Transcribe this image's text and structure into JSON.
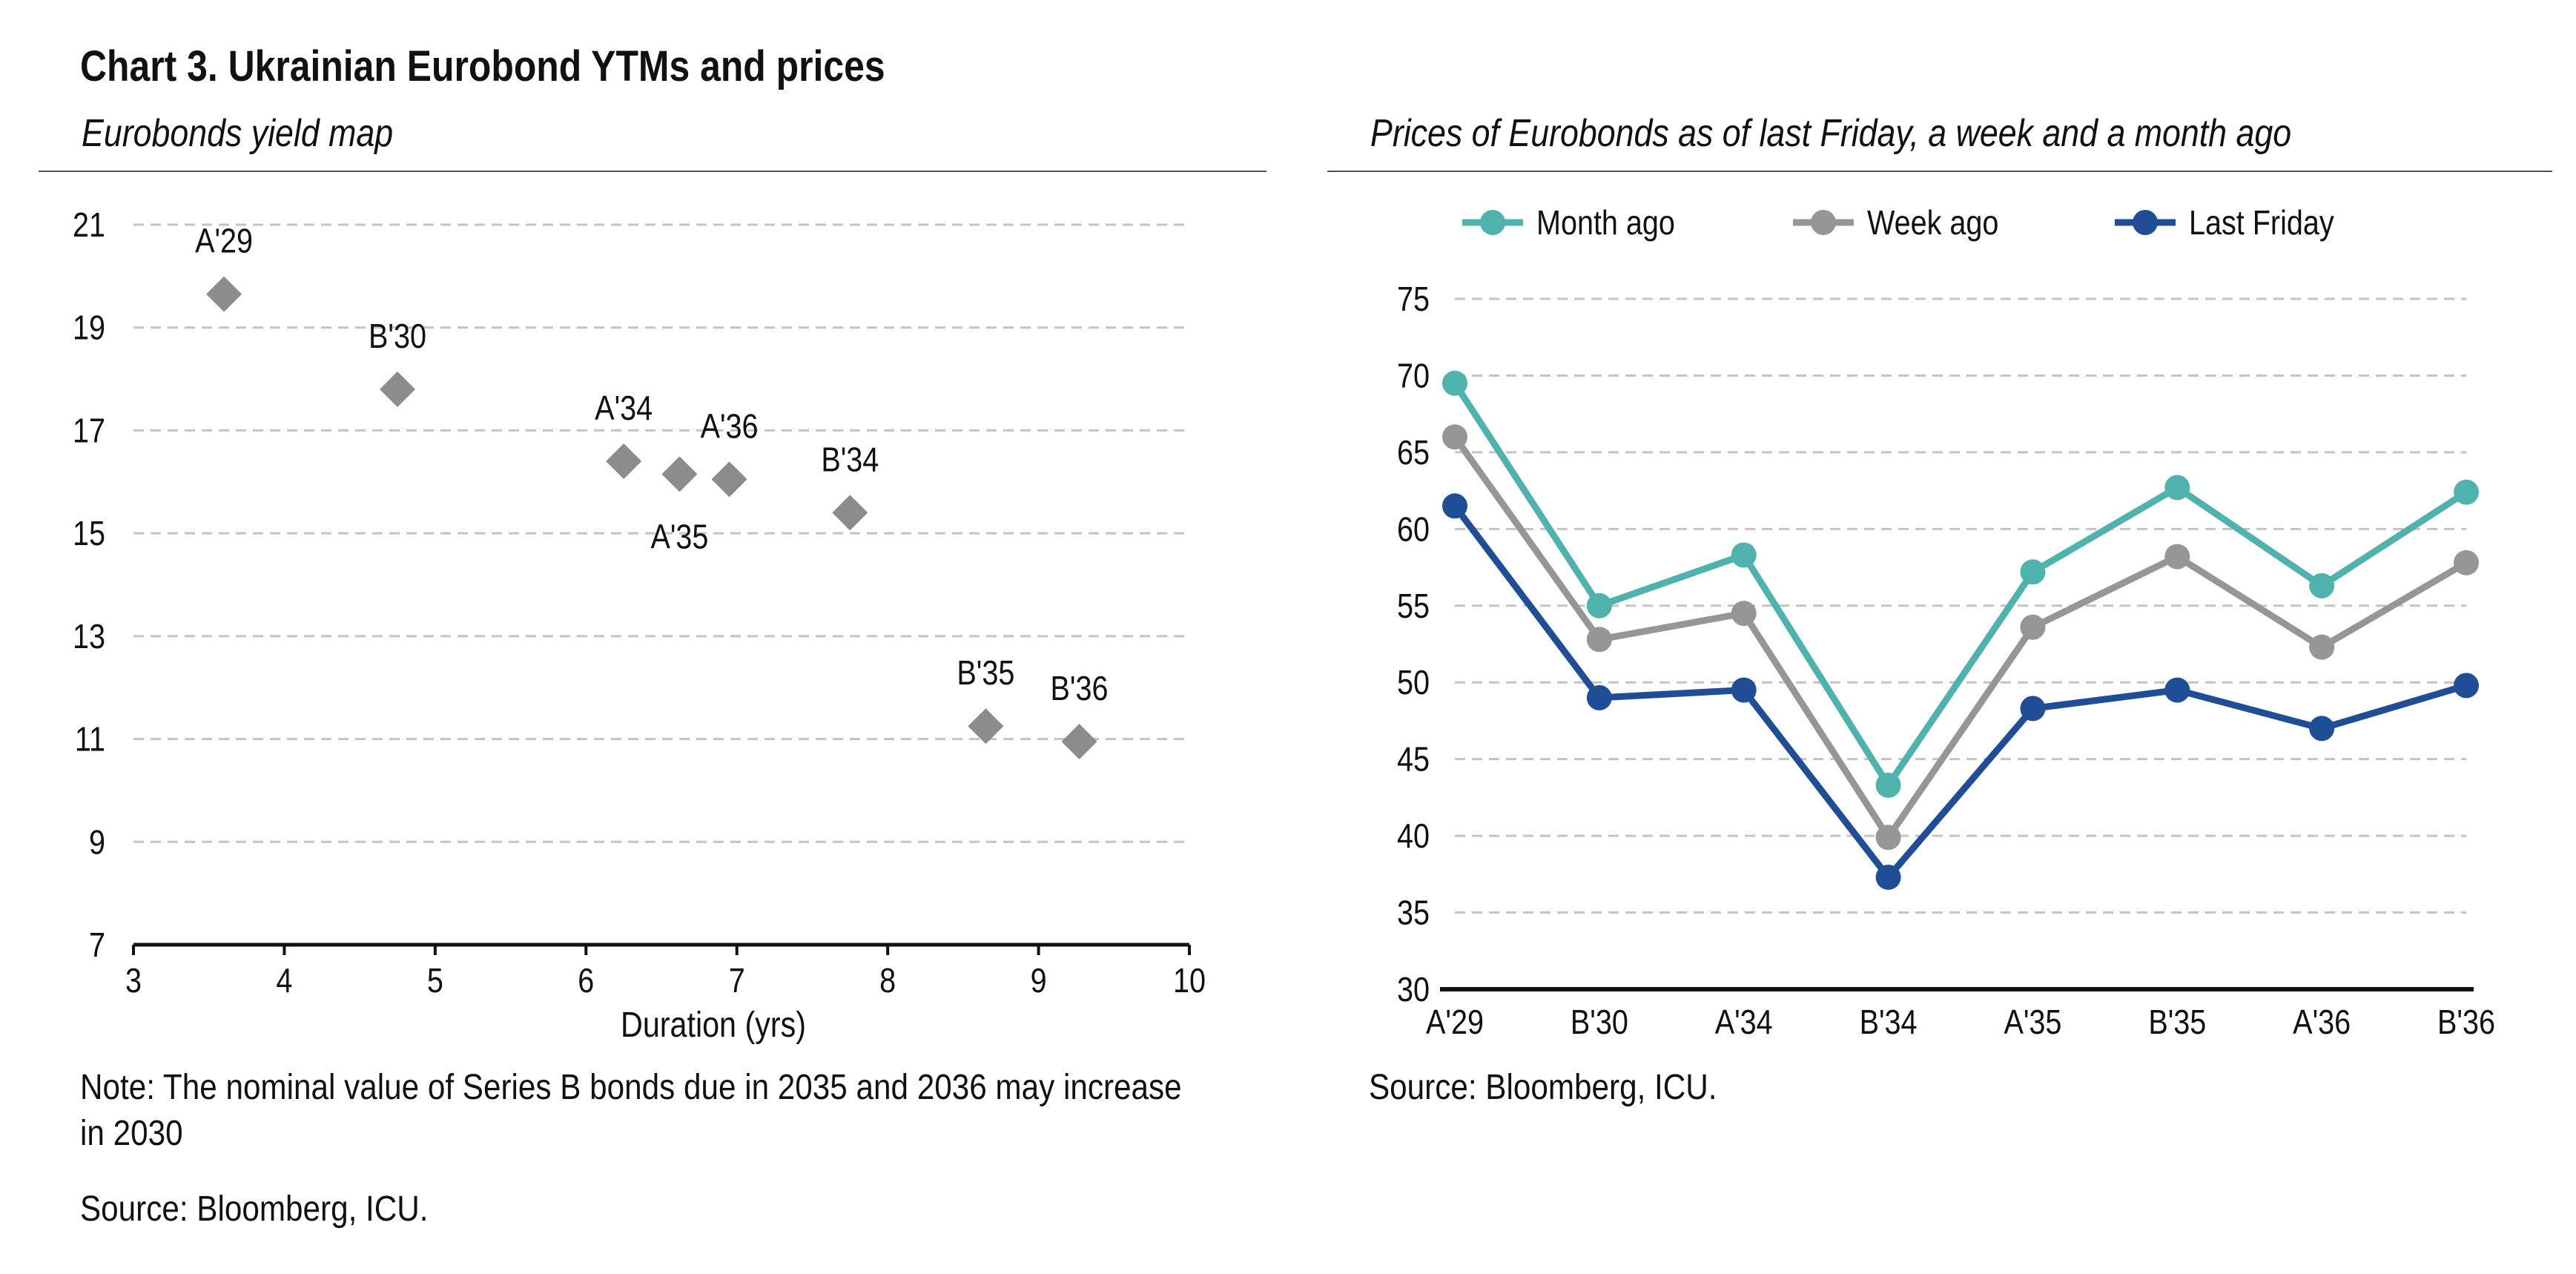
{
  "page": {
    "title": "Chart 3. Ukrainian Eurobond YTMs and prices",
    "left_subtitle": "Eurobonds yield map",
    "right_subtitle": "Prices of Eurobonds as of last Friday, a week and a month ago",
    "left_note": "Note: The nominal value of Series B bonds due in 2035 and 2036 may increase in 2030",
    "left_source": "Source: Bloomberg, ICU.",
    "right_source": "Source: Bloomberg, ICU."
  },
  "chart_data": [
    {
      "type": "scatter",
      "title": "Eurobonds yield map",
      "xlabel": "Duration (yrs)",
      "ylabel": "",
      "xlim": [
        3,
        10
      ],
      "ylim": [
        7,
        21
      ],
      "xticks": [
        3,
        4,
        5,
        6,
        7,
        8,
        9,
        10
      ],
      "yticks": [
        7,
        9,
        11,
        13,
        15,
        17,
        19,
        21
      ],
      "grid": "horizontal-dashed",
      "marker": "diamond",
      "marker_color": "#8c8c8c",
      "points": [
        {
          "label": "A'29",
          "x": 3.6,
          "y": 19.65,
          "label_pos": "above"
        },
        {
          "label": "B'30",
          "x": 4.75,
          "y": 17.8,
          "label_pos": "above"
        },
        {
          "label": "A'34",
          "x": 6.25,
          "y": 16.4,
          "label_pos": "above"
        },
        {
          "label": "A'35",
          "x": 6.62,
          "y": 16.15,
          "label_pos": "below"
        },
        {
          "label": "A'36",
          "x": 6.95,
          "y": 16.05,
          "label_pos": "above"
        },
        {
          "label": "B'34",
          "x": 7.75,
          "y": 15.4,
          "label_pos": "above"
        },
        {
          "label": "B'35",
          "x": 8.65,
          "y": 11.25,
          "label_pos": "above"
        },
        {
          "label": "B'36",
          "x": 9.27,
          "y": 10.95,
          "label_pos": "above"
        }
      ]
    },
    {
      "type": "line",
      "title": "Prices of Eurobonds as of last Friday, a week and a month ago",
      "categories": [
        "A'29",
        "B'30",
        "A'34",
        "B'34",
        "A'35",
        "B'35",
        "A'36",
        "B'36"
      ],
      "ylim": [
        30,
        75
      ],
      "yticks": [
        30,
        35,
        40,
        45,
        50,
        55,
        60,
        65,
        70,
        75
      ],
      "grid": "horizontal-dashed",
      "legend": "top",
      "series": [
        {
          "name": "Month ago",
          "color": "#4fb3ad",
          "values": [
            69.5,
            55.0,
            58.3,
            43.3,
            57.2,
            62.7,
            56.3,
            62.4
          ]
        },
        {
          "name": "Week ago",
          "color": "#969696",
          "values": [
            66.0,
            52.8,
            54.5,
            39.9,
            53.6,
            58.2,
            52.3,
            57.8
          ]
        },
        {
          "name": "Last Friday",
          "color": "#1f4e96",
          "values": [
            61.5,
            49.0,
            49.5,
            37.3,
            48.3,
            49.5,
            47.0,
            49.8
          ]
        }
      ]
    }
  ]
}
